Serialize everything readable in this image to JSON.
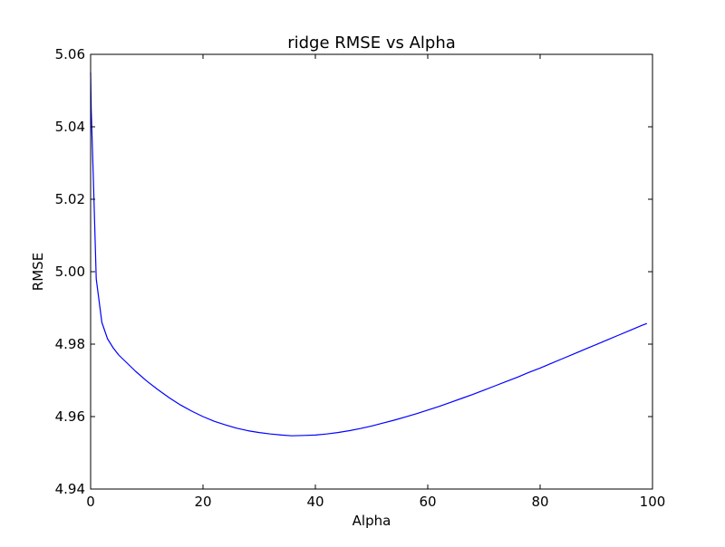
{
  "chart_data": {
    "type": "line",
    "title": "ridge RMSE vs Alpha",
    "xlabel": "Alpha",
    "ylabel": "RMSE",
    "xlim": [
      0,
      100
    ],
    "ylim": [
      4.94,
      5.06
    ],
    "x_ticks": [
      "0",
      "20",
      "40",
      "60",
      "80",
      "100"
    ],
    "y_ticks": [
      "4.94",
      "4.96",
      "4.98",
      "5.00",
      "5.02",
      "5.04",
      "5.06"
    ],
    "grid": false,
    "legend": "none",
    "series": [
      {
        "color": "#0000ff",
        "x": [
          0,
          0.1,
          0.5,
          1,
          2,
          3,
          4,
          5,
          6,
          8,
          10,
          12,
          14,
          16,
          18,
          20,
          22,
          24,
          26,
          28,
          30,
          32,
          34,
          35.8,
          38,
          40,
          42,
          44,
          46,
          48,
          50,
          52,
          54,
          56,
          58,
          60,
          62,
          64,
          66,
          68,
          70,
          72,
          74,
          76,
          78,
          80,
          82,
          84,
          86,
          88,
          90,
          92,
          94,
          96,
          98,
          99
        ],
        "y": [
          5.055,
          5.045,
          5.025,
          4.998,
          4.986,
          4.9815,
          4.979,
          4.977,
          4.9755,
          4.9725,
          4.9698,
          4.9674,
          4.9652,
          4.9632,
          4.9615,
          4.96,
          4.9587,
          4.9577,
          4.9568,
          4.9561,
          4.9556,
          4.9552,
          4.9549,
          4.9547,
          4.9548,
          4.9549,
          4.9552,
          4.9556,
          4.9561,
          4.9567,
          4.9574,
          4.9582,
          4.959,
          4.9599,
          4.9608,
          4.9618,
          4.9628,
          4.9639,
          4.965,
          4.9661,
          4.9673,
          4.9685,
          4.9697,
          4.9709,
          4.9722,
          4.9734,
          4.9747,
          4.976,
          4.9773,
          4.9786,
          4.9799,
          4.9812,
          4.9825,
          4.9838,
          4.9851,
          4.9857
        ]
      }
    ]
  }
}
